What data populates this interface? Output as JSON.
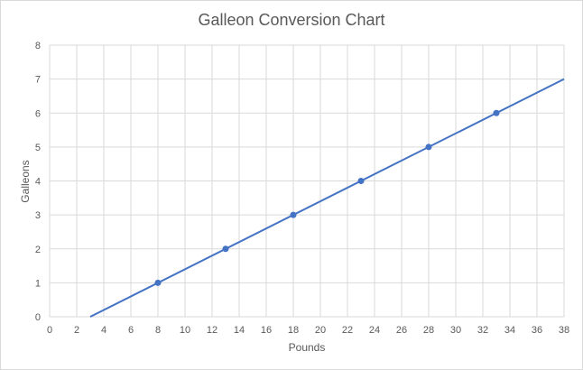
{
  "chart_data": {
    "type": "scatter",
    "title": "Galleon Conversion Chart",
    "xlabel": "Pounds",
    "ylabel": "Galleons",
    "xlim": [
      0,
      38
    ],
    "ylim": [
      0,
      8
    ],
    "x_ticks": [
      0,
      2,
      4,
      6,
      8,
      10,
      12,
      14,
      16,
      18,
      20,
      22,
      24,
      26,
      28,
      30,
      32,
      34,
      36,
      38
    ],
    "y_ticks": [
      0,
      1,
      2,
      3,
      4,
      5,
      6,
      7,
      8
    ],
    "grid": true,
    "legend": "none",
    "series": [
      {
        "points": [
          {
            "x": 8,
            "y": 1
          },
          {
            "x": 13,
            "y": 2
          },
          {
            "x": 18,
            "y": 3
          },
          {
            "x": 23,
            "y": 4
          },
          {
            "x": 28,
            "y": 5
          },
          {
            "x": 33,
            "y": 6
          }
        ],
        "trendline": {
          "type": "linear",
          "slope": 0.2,
          "intercept": -0.6
        },
        "color": "#4472c4"
      }
    ]
  }
}
